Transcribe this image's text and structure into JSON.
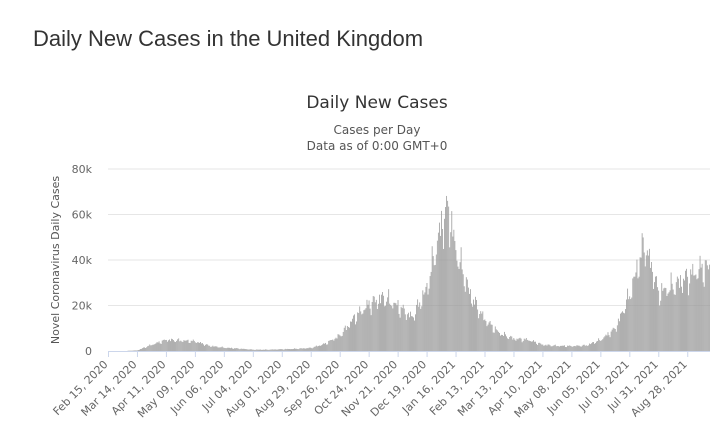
{
  "page": {
    "title": "Daily New Cases in the United Kingdom"
  },
  "chart_data": {
    "type": "bar",
    "title": "Daily New Cases",
    "subtitle_lines": [
      "Cases per Day",
      "Data as of 0:00 GMT+0"
    ],
    "xlabel": "",
    "ylabel": "Novel Coronavirus Daily Cases",
    "ylim": [
      0,
      80000
    ],
    "grid": true,
    "y_ticks": [
      {
        "value": 0,
        "label": "0"
      },
      {
        "value": 20000,
        "label": "20k"
      },
      {
        "value": 40000,
        "label": "40k"
      },
      {
        "value": 60000,
        "label": "60k"
      },
      {
        "value": 80000,
        "label": "80k"
      }
    ],
    "x_start": "2020-02-15",
    "x_end": "2021-09-18",
    "x_tick_labels": [
      "Feb 15, 2020",
      "Mar 14, 2020",
      "Apr 11, 2020",
      "May 09, 2020",
      "Jun 06, 2020",
      "Jul 04, 2020",
      "Aug 01, 2020",
      "Aug 29, 2020",
      "Sep 26, 2020",
      "Oct 24, 2020",
      "Nov 21, 2020",
      "Dec 19, 2020",
      "Jan 16, 2021",
      "Feb 13, 2021",
      "Mar 13, 2021",
      "Apr 10, 2021",
      "May 08, 2021",
      "Jun 05, 2021",
      "Jul 03, 2021",
      "Jul 31, 2021",
      "Aug 28, 2021"
    ],
    "series": [
      {
        "color": "#999999",
        "estimated_weekly_points": [
          [
            "2020-02-15",
            0
          ],
          [
            "2020-02-29",
            0
          ],
          [
            "2020-03-14",
            300
          ],
          [
            "2020-03-28",
            2800
          ],
          [
            "2020-04-11",
            5000
          ],
          [
            "2020-04-25",
            4700
          ],
          [
            "2020-05-09",
            4300
          ],
          [
            "2020-05-23",
            2300
          ],
          [
            "2020-06-06",
            1500
          ],
          [
            "2020-06-20",
            1100
          ],
          [
            "2020-07-04",
            600
          ],
          [
            "2020-07-18",
            600
          ],
          [
            "2020-08-01",
            800
          ],
          [
            "2020-08-15",
            1000
          ],
          [
            "2020-08-29",
            1400
          ],
          [
            "2020-09-12",
            3300
          ],
          [
            "2020-09-26",
            7000
          ],
          [
            "2020-10-10",
            15000
          ],
          [
            "2020-10-24",
            21000
          ],
          [
            "2020-11-07",
            24000
          ],
          [
            "2020-11-21",
            20000
          ],
          [
            "2020-12-05",
            15000
          ],
          [
            "2020-12-19",
            28000
          ],
          [
            "2021-01-02",
            57000
          ],
          [
            "2021-01-09",
            64000
          ],
          [
            "2021-01-16",
            45000
          ],
          [
            "2021-01-30",
            25000
          ],
          [
            "2021-02-13",
            14000
          ],
          [
            "2021-02-27",
            8000
          ],
          [
            "2021-03-13",
            5500
          ],
          [
            "2021-03-27",
            5000
          ],
          [
            "2021-04-10",
            2800
          ],
          [
            "2021-04-24",
            2300
          ],
          [
            "2021-05-08",
            2200
          ],
          [
            "2021-05-22",
            2500
          ],
          [
            "2021-06-05",
            5000
          ],
          [
            "2021-06-19",
            10000
          ],
          [
            "2021-07-03",
            25000
          ],
          [
            "2021-07-17",
            48000
          ],
          [
            "2021-07-24",
            38000
          ],
          [
            "2021-07-31",
            26000
          ],
          [
            "2021-08-14",
            29000
          ],
          [
            "2021-08-28",
            33000
          ],
          [
            "2021-09-11",
            37000
          ],
          [
            "2021-09-18",
            37000
          ]
        ]
      }
    ]
  }
}
